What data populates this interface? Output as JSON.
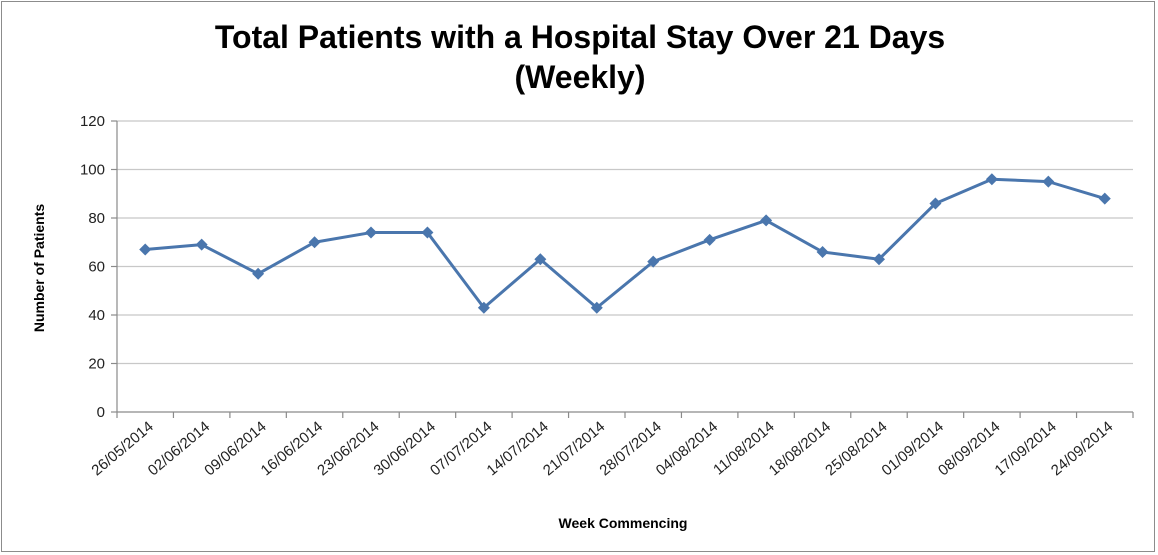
{
  "chart_data": {
    "type": "line",
    "title": [
      "Total Patients with a Hospital Stay Over 21 Days",
      "(Weekly)"
    ],
    "xlabel": "Week Commencing",
    "ylabel": "Number of Patients",
    "ylim": [
      0,
      120
    ],
    "yticks": [
      0,
      20,
      40,
      60,
      80,
      100,
      120
    ],
    "grid": true,
    "categories": [
      "26/05/2014",
      "02/06/2014",
      "09/06/2014",
      "16/06/2014",
      "23/06/2014",
      "30/06/2014",
      "07/07/2014",
      "14/07/2014",
      "21/07/2014",
      "28/07/2014",
      "04/08/2014",
      "11/08/2014",
      "18/08/2014",
      "25/08/2014",
      "01/09/2014",
      "08/09/2014",
      "17/09/2014",
      "24/09/2014"
    ],
    "series": [
      {
        "values": [
          67,
          69,
          57,
          70,
          74,
          74,
          43,
          63,
          43,
          62,
          71,
          79,
          66,
          63,
          86,
          96,
          95,
          88
        ],
        "color": "#4a76ad",
        "marker": "diamond"
      }
    ]
  }
}
